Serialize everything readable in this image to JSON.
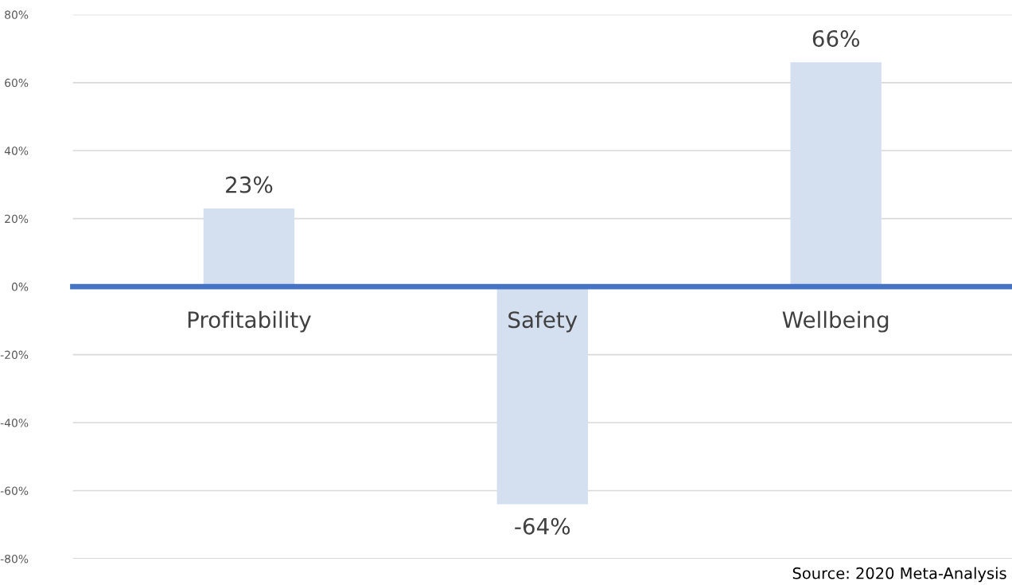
{
  "chart_data": {
    "type": "bar",
    "categories": [
      "Profitability",
      "Safety",
      "Wellbeing"
    ],
    "values": [
      23,
      -64,
      66
    ],
    "value_labels": [
      "23%",
      "-64%",
      "66%"
    ],
    "color": "#d4dff0",
    "ylim": [
      -80,
      80
    ],
    "yticks": [
      {
        "value": -80,
        "label": "-80%"
      },
      {
        "value": -60,
        "label": "-60%"
      },
      {
        "value": -40,
        "label": "-40%"
      },
      {
        "value": -20,
        "label": "-20%"
      },
      {
        "value": 0,
        "label": "0%"
      },
      {
        "value": 20,
        "label": "20%"
      },
      {
        "value": 40,
        "label": "40%"
      },
      {
        "value": 60,
        "label": "60%"
      },
      {
        "value": 80,
        "label": "80%"
      }
    ],
    "grid": "y",
    "annotations": [
      "Source: 2020 Meta-Analysis"
    ]
  }
}
